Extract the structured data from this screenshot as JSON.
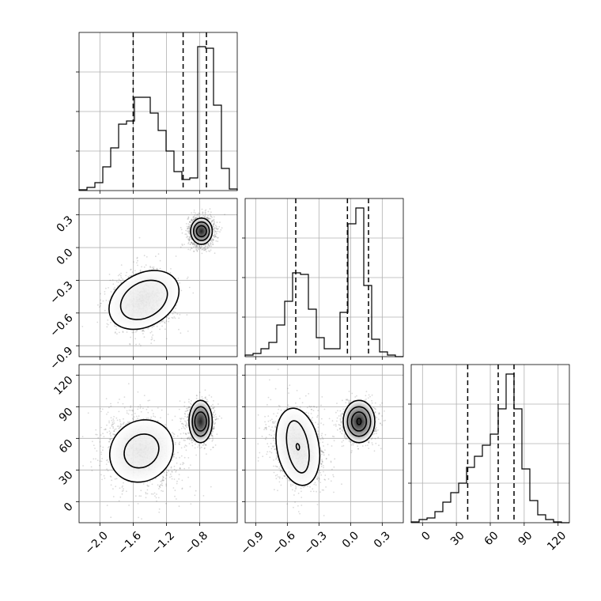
{
  "chart_data": {
    "type": "corner",
    "grid": true,
    "panels": [
      {
        "id": "hist-0",
        "type": "histogram",
        "row": 0,
        "col": 0,
        "x_range": [
          -2.25,
          -0.35
        ],
        "y_range": [
          0,
          1.0
        ],
        "bin_edges": [
          -2.25,
          -2.155,
          -2.06,
          -1.965,
          -1.87,
          -1.775,
          -1.68,
          -1.585,
          -1.49,
          -1.395,
          -1.3,
          -1.205,
          -1.11,
          -1.015,
          -0.92,
          -0.825,
          -0.73,
          -0.635,
          -0.54,
          -0.445,
          -0.35
        ],
        "counts": [
          0.005,
          0.02,
          0.05,
          0.15,
          0.27,
          0.42,
          0.44,
          0.59,
          0.59,
          0.49,
          0.38,
          0.25,
          0.12,
          0.07,
          0.08,
          0.91,
          0.9,
          0.54,
          0.14,
          0.01
        ],
        "quantiles": [
          -1.6,
          -1.0,
          -0.72
        ]
      },
      {
        "id": "hist-1",
        "type": "histogram",
        "row": 1,
        "col": 1,
        "x_range": [
          -1.0,
          0.5
        ],
        "y_range": [
          0,
          1.0
        ],
        "bin_edges": [
          -1.0,
          -0.925,
          -0.85,
          -0.775,
          -0.7,
          -0.625,
          -0.55,
          -0.475,
          -0.4,
          -0.325,
          -0.25,
          -0.175,
          -0.1,
          -0.025,
          0.05,
          0.125,
          0.2,
          0.275,
          0.35,
          0.425,
          0.5
        ],
        "counts": [
          0.01,
          0.02,
          0.05,
          0.09,
          0.2,
          0.35,
          0.53,
          0.52,
          0.3,
          0.12,
          0.05,
          0.05,
          0.28,
          0.84,
          0.94,
          0.45,
          0.11,
          0.03,
          0.01,
          0.0
        ],
        "quantiles": [
          -0.52,
          -0.03,
          0.17
        ]
      },
      {
        "id": "hist-2",
        "type": "histogram",
        "row": 2,
        "col": 2,
        "x_range": [
          -10,
          130
        ],
        "y_range": [
          0,
          1.0
        ],
        "bin_edges": [
          -10,
          -3,
          4,
          11,
          18,
          25,
          32,
          39,
          46,
          53,
          60,
          67,
          74,
          81,
          88,
          95,
          102,
          109,
          116,
          123,
          130
        ],
        "counts": [
          0.005,
          0.02,
          0.03,
          0.07,
          0.13,
          0.19,
          0.25,
          0.35,
          0.42,
          0.49,
          0.56,
          0.72,
          0.94,
          0.72,
          0.34,
          0.14,
          0.05,
          0.02,
          0.005,
          0.0
        ],
        "quantiles": [
          40,
          67,
          81
        ]
      },
      {
        "id": "scatter-1-0",
        "type": "scatter_contour",
        "row": 1,
        "col": 0,
        "x_range": [
          -2.25,
          -0.35
        ],
        "y_range": [
          -1.0,
          0.45
        ],
        "ylabel_ticks": [
          "0.3",
          "0.0",
          "−0.3",
          "−0.6",
          "−0.9"
        ],
        "clusters": [
          {
            "center": [
              -1.47,
              -0.48
            ],
            "spread": [
              0.18,
              0.15
            ],
            "rotation_deg": 30,
            "weight": 0.45,
            "levels": [
              [
                0.3,
                0.16
              ],
              [
                0.45,
                0.24
              ]
            ]
          },
          {
            "center": [
              -0.78,
              0.15
            ],
            "spread": [
              0.07,
              0.07
            ],
            "rotation_deg": 0,
            "weight": 0.55,
            "levels": [
              [
                0.06,
                0.05
              ],
              [
                0.095,
                0.085
              ],
              [
                0.13,
                0.12
              ]
            ]
          }
        ]
      },
      {
        "id": "scatter-2-0",
        "type": "scatter_contour",
        "row": 2,
        "col": 0,
        "x_range": [
          -2.25,
          -0.35
        ],
        "y_range": [
          -20,
          130
        ],
        "ylabel_ticks": [
          "120",
          "90",
          "60",
          "30",
          "0"
        ],
        "clusters": [
          {
            "center": [
              -1.5,
              48
            ],
            "spread": [
              0.2,
              20
            ],
            "rotation_deg": 40,
            "weight": 0.45,
            "levels": [
              [
                0.22,
                15
              ],
              [
                0.4,
                28
              ]
            ]
          },
          {
            "center": [
              -0.79,
              76
            ],
            "spread": [
              0.07,
              9
            ],
            "rotation_deg": 0,
            "weight": 0.55,
            "levels": [
              [
                0.07,
                9
              ],
              [
                0.1,
                14
              ],
              [
                0.14,
                20
              ]
            ]
          }
        ]
      },
      {
        "id": "scatter-2-1",
        "type": "scatter_contour",
        "row": 2,
        "col": 1,
        "x_range": [
          -1.0,
          0.5
        ],
        "y_range": [
          -20,
          130
        ],
        "clusters": [
          {
            "center": [
              -0.5,
              52
            ],
            "spread": [
              0.12,
              20
            ],
            "rotation_deg": 10,
            "weight": 0.45,
            "levels": [
              [
                0.015,
                3
              ],
              [
                0.1,
                25
              ],
              [
                0.2,
                37
              ]
            ]
          },
          {
            "center": [
              0.08,
              76
            ],
            "spread": [
              0.07,
              9
            ],
            "rotation_deg": 0,
            "weight": 0.55,
            "levels": [
              [
                0.02,
                3
              ],
              [
                0.07,
                9
              ],
              [
                0.11,
                14
              ],
              [
                0.15,
                20
              ]
            ]
          }
        ]
      }
    ],
    "x_ticks": [
      {
        "col": 0,
        "values": [
          -2.0,
          -1.6,
          -1.2,
          -0.8
        ],
        "labels": [
          "−2.0",
          "−1.6",
          "−1.2",
          "−0.8"
        ]
      },
      {
        "col": 1,
        "values": [
          -0.9,
          -0.6,
          -0.3,
          0.0,
          0.3
        ],
        "labels": [
          "−0.9",
          "−0.6",
          "−0.3",
          "0.0",
          "0.3"
        ]
      },
      {
        "col": 2,
        "values": [
          0,
          30,
          60,
          90,
          120
        ],
        "labels": [
          "0",
          "30",
          "60",
          "90",
          "120"
        ]
      }
    ],
    "y_ticks": [
      {
        "row": 1,
        "values": [
          0.3,
          0.0,
          -0.3,
          -0.6,
          -0.9
        ],
        "labels": [
          "0.3",
          "0.0",
          "−0.3",
          "−0.6",
          "−0.9"
        ]
      },
      {
        "row": 2,
        "values": [
          120,
          90,
          60,
          30,
          0
        ],
        "labels": [
          "120",
          "90",
          "60",
          "30",
          "0"
        ]
      }
    ],
    "hist_y_ticks": [
      0.25,
      0.5,
      0.75
    ]
  }
}
